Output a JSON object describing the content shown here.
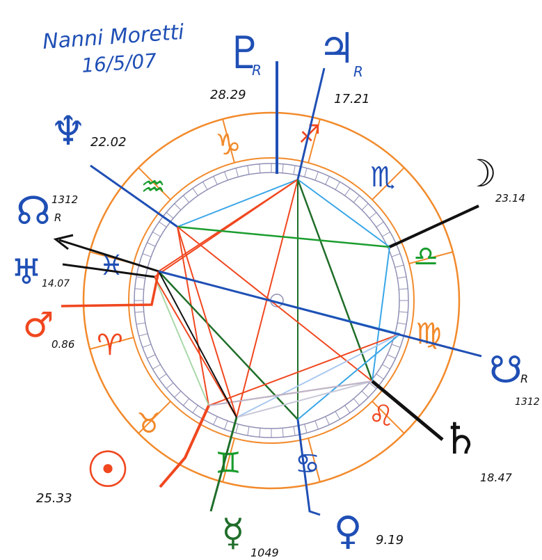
{
  "header": {
    "line1": "Nanni Moretti",
    "line2": "16/5/07"
  },
  "colors": {
    "orange": "#f28a2b",
    "blue": "#1f4fb5",
    "red_orange": "#f0471f",
    "black": "#111111",
    "green": "#1a9d2e",
    "dark_green": "#1f6e2a",
    "light_blue": "#39a6e8",
    "pale_blue": "#a9c8ee",
    "wheel_gray": "#8f8fb5"
  },
  "signs": [
    {
      "name": "capricorn",
      "glyph": "♑",
      "color": "#f28a2b"
    },
    {
      "name": "aquarius",
      "glyph": "♒",
      "color": "#1a9d2e"
    },
    {
      "name": "pisces",
      "glyph": "♓",
      "color": "#1f4fb5"
    },
    {
      "name": "aries",
      "glyph": "♈",
      "color": "#f0471f"
    },
    {
      "name": "taurus",
      "glyph": "♉",
      "color": "#f28a2b"
    },
    {
      "name": "gemini",
      "glyph": "♊",
      "color": "#1a9d2e"
    },
    {
      "name": "cancer",
      "glyph": "♋",
      "color": "#1f4fb5"
    },
    {
      "name": "leo",
      "glyph": "♌",
      "color": "#f0471f"
    },
    {
      "name": "virgo",
      "glyph": "♍",
      "color": "#f28a2b"
    },
    {
      "name": "libra",
      "glyph": "♎",
      "color": "#1a9d2e"
    },
    {
      "name": "scorpio",
      "glyph": "♏",
      "color": "#1f4fb5"
    },
    {
      "name": "sagittarius",
      "glyph": "♐",
      "color": "#f0471f"
    }
  ],
  "planets": [
    {
      "name": "pluto",
      "glyph": "♇",
      "retro": "R",
      "degree": "28.29",
      "color": "#1f4fb5"
    },
    {
      "name": "jupiter",
      "glyph": "♃",
      "retro": "R",
      "degree": "17.21",
      "color": "#1f4fb5"
    },
    {
      "name": "neptune",
      "glyph": "♆",
      "retro": "",
      "degree": "22.02",
      "color": "#1f4fb5"
    },
    {
      "name": "north-node",
      "glyph": "☊",
      "retro": "R",
      "degree": "1312",
      "color": "#1f4fb5"
    },
    {
      "name": "uranus",
      "glyph": "♅",
      "retro": "",
      "degree": "14.07",
      "color": "#1f4fb5"
    },
    {
      "name": "mars",
      "glyph": "♂",
      "retro": "",
      "degree": "0.86",
      "color": "#f0471f"
    },
    {
      "name": "sun",
      "glyph": "☉",
      "retro": "",
      "degree": "25.33",
      "color": "#f0471f"
    },
    {
      "name": "mercury",
      "glyph": "☿",
      "retro": "",
      "degree": "1049",
      "color": "#1f6e2a"
    },
    {
      "name": "venus",
      "glyph": "♀",
      "retro": "",
      "degree": "9.19",
      "color": "#1f4fb5"
    },
    {
      "name": "saturn",
      "glyph": "♄",
      "retro": "",
      "degree": "18.47",
      "color": "#111111"
    },
    {
      "name": "south-node",
      "glyph": "☋",
      "retro": "R",
      "degree": "1312",
      "color": "#1f4fb5"
    },
    {
      "name": "moon",
      "glyph": "☽",
      "retro": "",
      "degree": "23.14",
      "color": "#111111"
    }
  ]
}
